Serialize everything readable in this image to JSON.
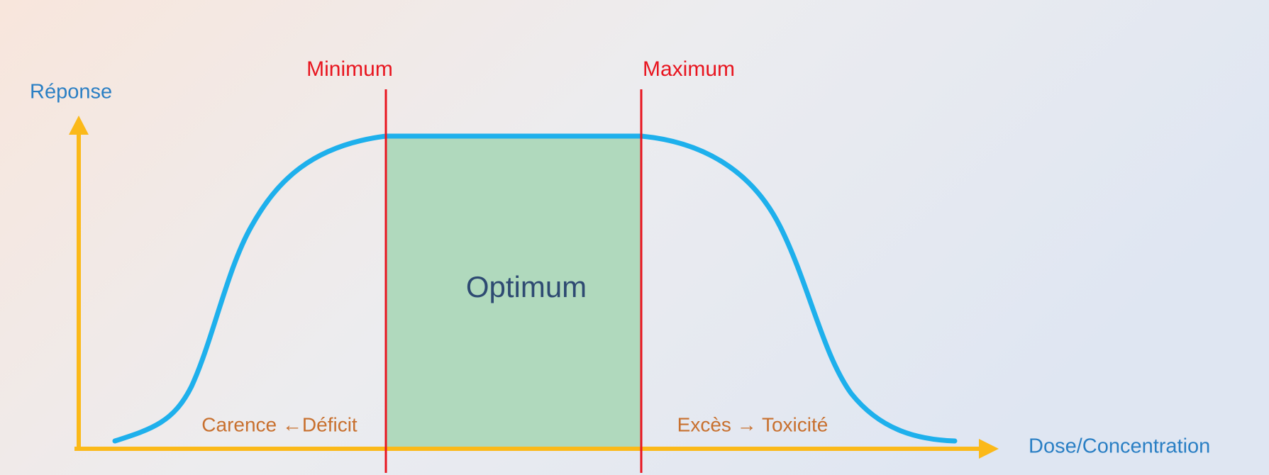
{
  "axes": {
    "y_label": "Réponse",
    "x_label": "Dose/Concentration"
  },
  "limits": {
    "minimum": "Minimum",
    "maximum": "Maximum"
  },
  "zones": {
    "optimum": "Optimum",
    "deficit": "Carence ←Déficit",
    "excess": "Excès → Toxicité"
  }
}
